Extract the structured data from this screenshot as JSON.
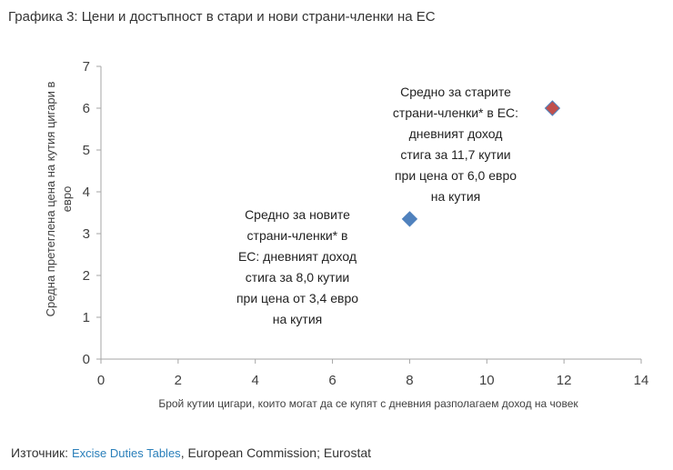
{
  "title": "Графика 3: Цени и достъпност в стари и нови страни-членки на ЕС",
  "source": {
    "prefix": "Източник: ",
    "link_text": "Excise Duties Tables",
    "suffix": ", European Commission; Eurostat"
  },
  "chart_data": {
    "type": "scatter",
    "title": "",
    "xlabel": "Брой кутии цигари, които могат да се купят с дневния разполагаем доход на човек",
    "ylabel_lines": [
      "Средна претеглена цена на кутия цигари в",
      "евро"
    ],
    "xlim": [
      0,
      14
    ],
    "ylim": [
      0,
      7
    ],
    "x_ticks": [
      0,
      2,
      4,
      6,
      8,
      10,
      12,
      14
    ],
    "y_ticks": [
      0,
      1,
      2,
      3,
      4,
      5,
      6,
      7
    ],
    "grid": false,
    "points": [
      {
        "x": 8.0,
        "y": 3.35,
        "color": "#4f81bd",
        "label_lines": [
          "Средно за новите",
          "страни-членки* в",
          "ЕС: дневният доход",
          "стига за 8,0 кутии",
          "при цена от 3,4 евро",
          "на кутия"
        ]
      },
      {
        "x": 11.7,
        "y": 6.0,
        "color": "#c0504d",
        "label_lines": [
          "Средно за старите",
          "страни-членки* в ЕС:",
          "дневният доход",
          "стига за 11,7 кутии",
          "при цена от 6,0 евро",
          "на кутия"
        ]
      }
    ]
  }
}
